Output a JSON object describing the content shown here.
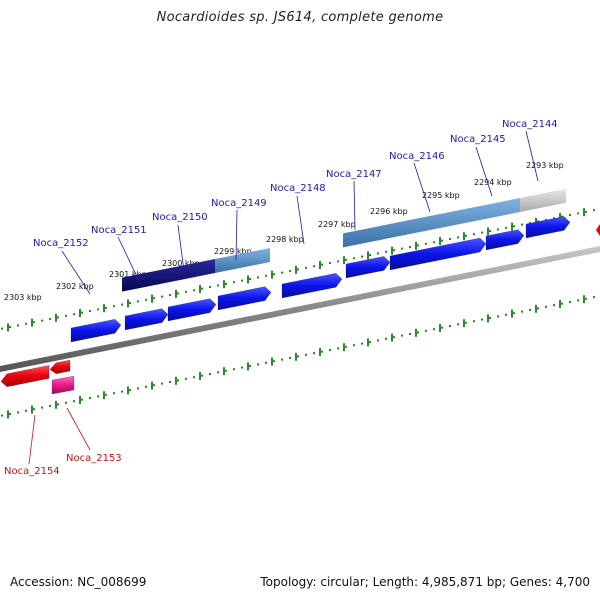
{
  "title": "Nocardioides sp. JS614, complete genome",
  "footer": {
    "accession": "Accession: NC_008699",
    "info": "Topology: circular; Length: 4,985,871 bp; Genes: 4,700"
  },
  "colors": {
    "forward_gene": "#0b14e8",
    "reverse_gene": "#e8000d",
    "reverse_gene_alt": "#e81a8a",
    "forward_label": "#1a1ab0",
    "reverse_label": "#cc1111",
    "backbone": "#888888",
    "scale_dots": "#2a8a2a"
  },
  "scale": {
    "ticks": [
      "2303 kbp",
      "2302 kbp",
      "2301 kbp",
      "2300 kbp",
      "2299 kbp",
      "2298 kbp",
      "2297 kbp",
      "2296 kbp",
      "2295 kbp",
      "2294 kbp",
      "2293 kbp"
    ]
  },
  "genes_forward": [
    "Noca_2152",
    "Noca_2151",
    "Noca_2150",
    "Noca_2149",
    "Noca_2148",
    "Noca_2147",
    "Noca_2146",
    "Noca_2145",
    "Noca_2144"
  ],
  "genes_reverse": [
    "Noca_2154",
    "Noca_2153"
  ]
}
